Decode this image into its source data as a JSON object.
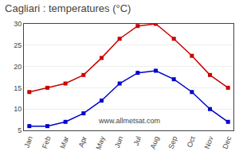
{
  "chart_data": {
    "type": "line",
    "title": "Cagliari : temperatures (°C)",
    "categories": [
      "Jan",
      "Feb",
      "Mar",
      "Apr",
      "May",
      "Jun",
      "Jul",
      "Aug",
      "Sep",
      "Oct",
      "Nov",
      "Dec"
    ],
    "series": [
      {
        "color": "#cc0000",
        "values": [
          14,
          15,
          16,
          18,
          22,
          26.5,
          29.5,
          30,
          26.5,
          22.5,
          18,
          15
        ],
        "marker": "square",
        "line_style": "solid"
      },
      {
        "color": "#0000cc",
        "values": [
          6,
          6,
          7,
          9,
          12,
          16,
          18.5,
          19,
          17,
          14,
          10,
          7
        ],
        "marker": "square",
        "line_style": "solid"
      }
    ],
    "ylim": [
      5,
      30
    ],
    "yticks": [
      5,
      10,
      15,
      20,
      25,
      30
    ],
    "grid": true,
    "annotations": [
      "www.allmetsat.com"
    ]
  }
}
